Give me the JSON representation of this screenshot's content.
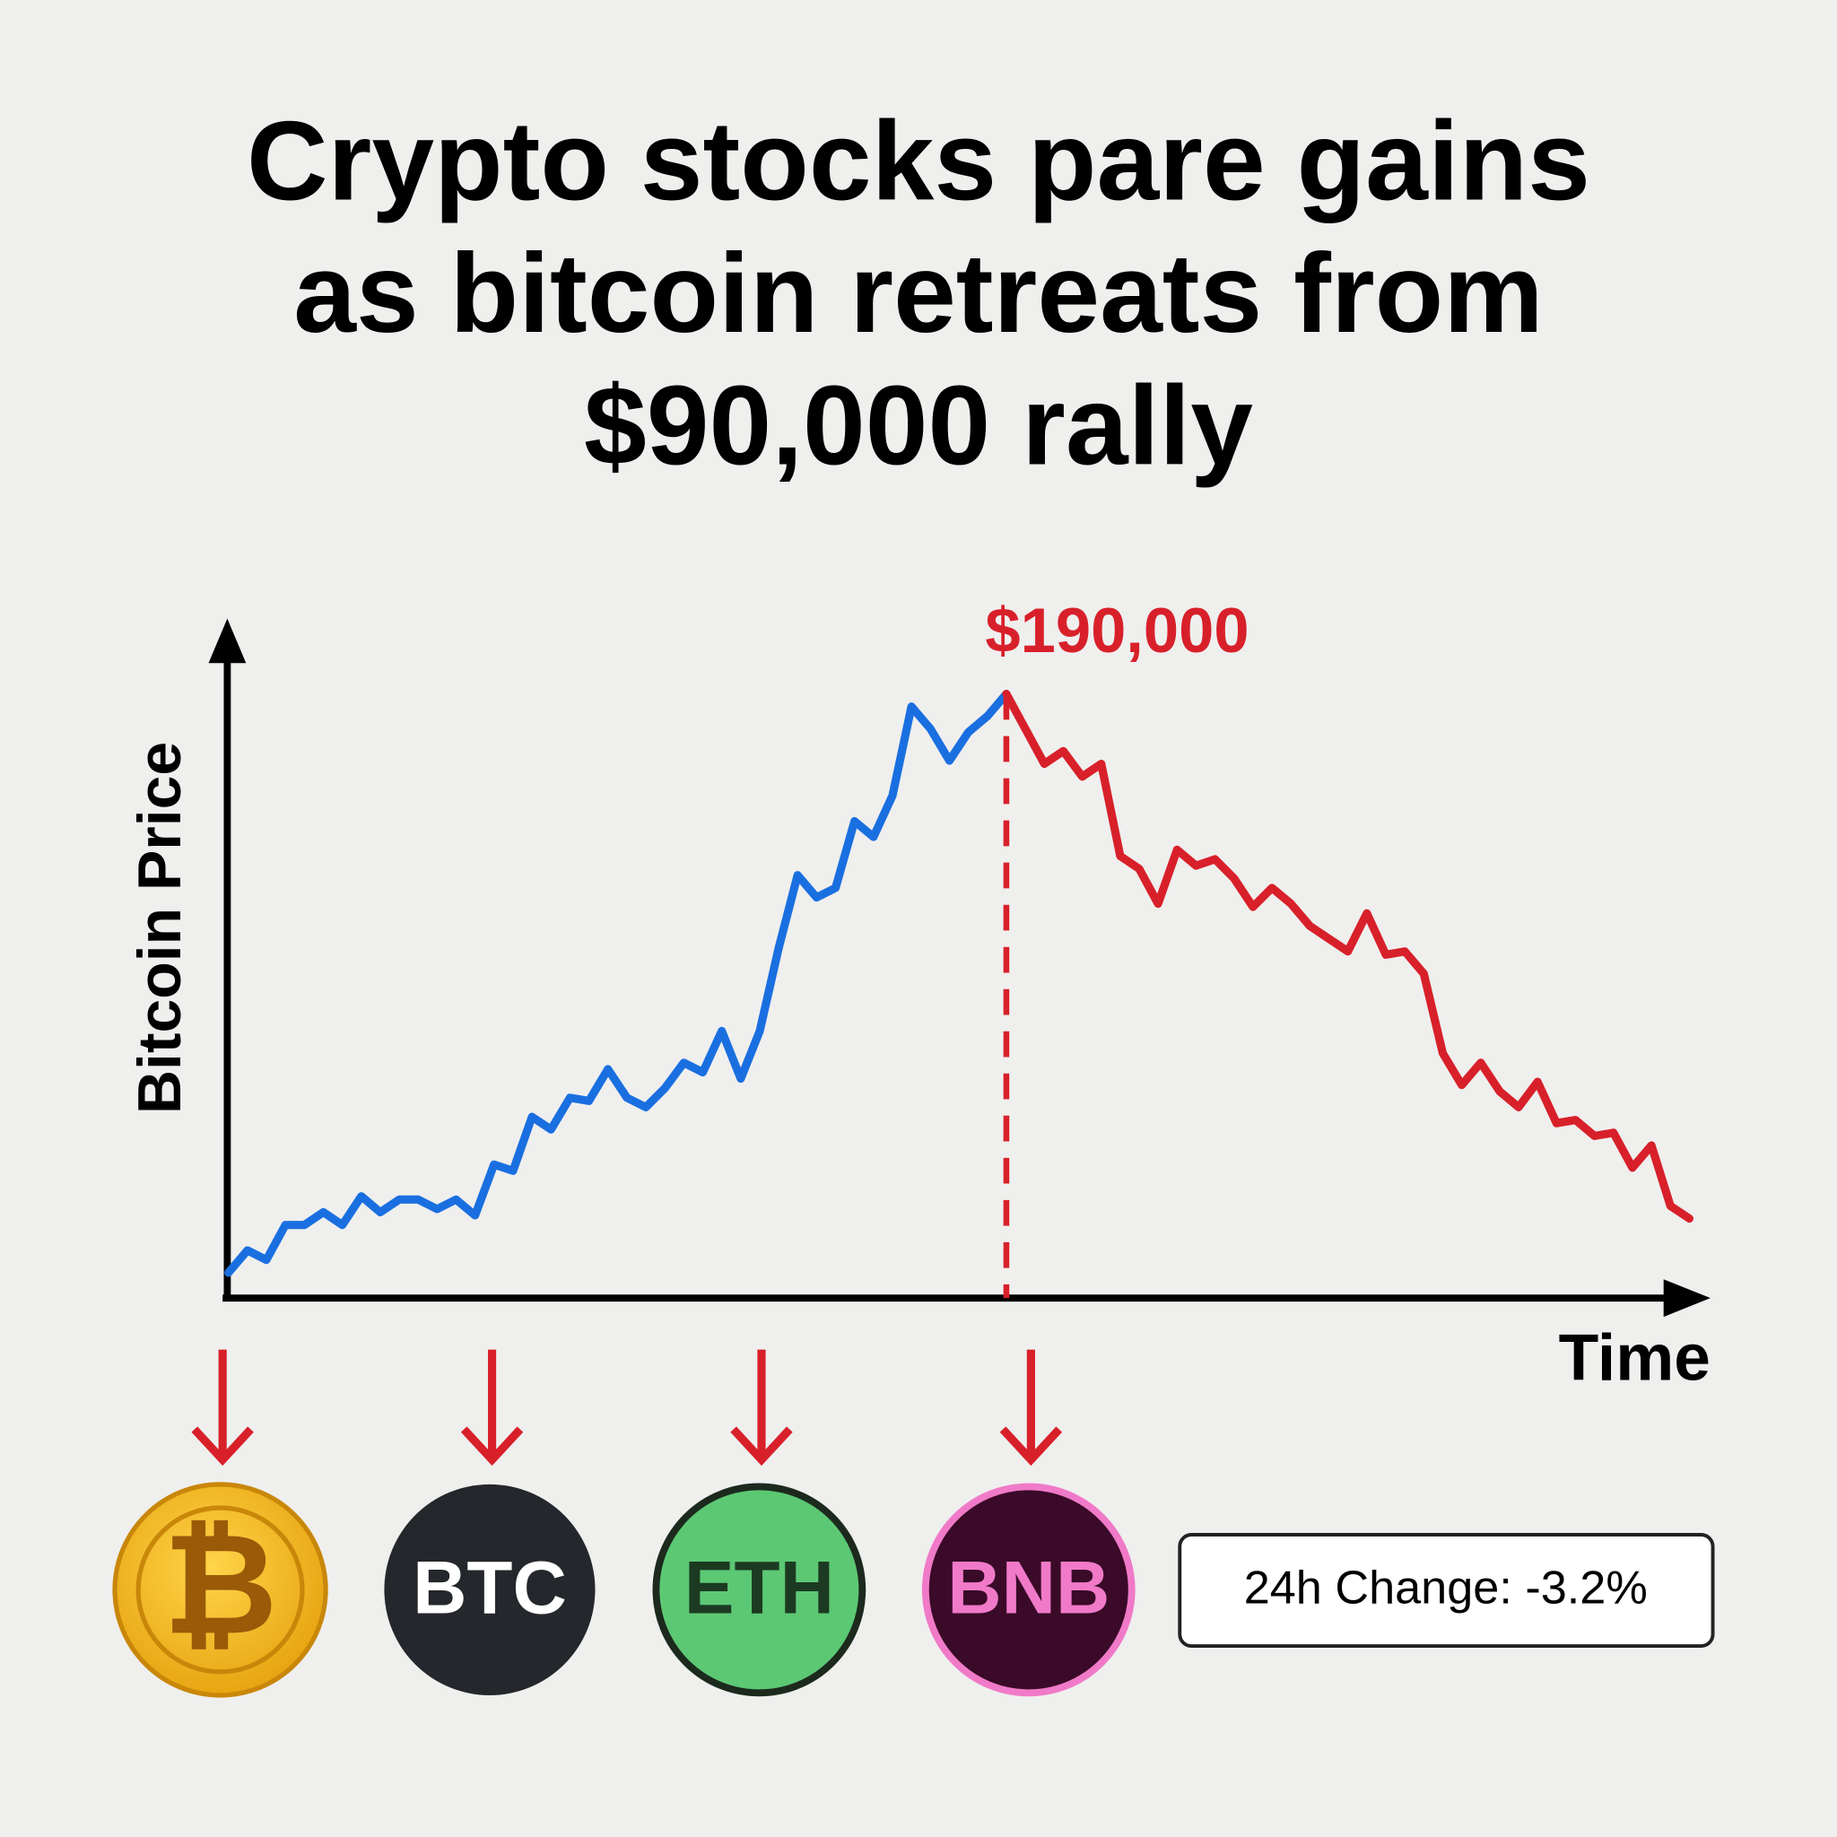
{
  "chart_data": {
    "type": "line",
    "title": [
      "Crypto stocks pare gains",
      "as bitcoin retreats from",
      "$90,000 rally"
    ],
    "y_label": "Bitcoin Price",
    "x_label": "Time",
    "ylim": [
      0,
      210000
    ],
    "annotation": {
      "value": 190000,
      "label": "$190,000"
    },
    "series": [
      {
        "color": "#1a6fe0",
        "values": [
          8000,
          15000,
          12000,
          23000,
          23000,
          27000,
          23000,
          32000,
          27000,
          31000,
          31000,
          28000,
          31000,
          26000,
          42000,
          40000,
          57000,
          53000,
          63000,
          62000,
          72000,
          63000,
          60000,
          66000,
          74000,
          71000,
          84000,
          69000,
          84000,
          110000,
          133000,
          126000,
          129000,
          150000,
          145000,
          158000,
          186000,
          179000,
          169000,
          178000,
          183000,
          190000,
          null,
          null,
          null,
          null,
          null,
          null,
          null,
          null,
          null,
          null,
          null,
          null,
          null,
          null,
          null,
          null,
          null,
          null,
          null,
          null,
          null,
          null,
          null,
          null,
          null,
          null,
          null,
          null,
          null,
          null,
          null,
          null,
          null,
          null,
          null,
          null
        ]
      },
      {
        "color": "#d8202a",
        "values": [
          null,
          null,
          null,
          null,
          null,
          null,
          null,
          null,
          null,
          null,
          null,
          null,
          null,
          null,
          null,
          null,
          null,
          null,
          null,
          null,
          null,
          null,
          null,
          null,
          null,
          null,
          null,
          null,
          null,
          null,
          null,
          null,
          null,
          null,
          null,
          null,
          null,
          null,
          null,
          null,
          null,
          190000,
          179000,
          168000,
          172000,
          164000,
          168000,
          139000,
          135000,
          124000,
          141000,
          136000,
          138000,
          132000,
          123000,
          129000,
          124000,
          117000,
          113000,
          109000,
          121000,
          108000,
          109000,
          102000,
          77000,
          67000,
          74000,
          65000,
          60000,
          68000,
          55000,
          56000,
          51000,
          52000,
          41000,
          48000,
          29000,
          25000
        ]
      }
    ]
  },
  "coins": [
    "₿",
    "BTC",
    "ETH",
    "BNB"
  ],
  "badge": "24h Change: -3.2%"
}
